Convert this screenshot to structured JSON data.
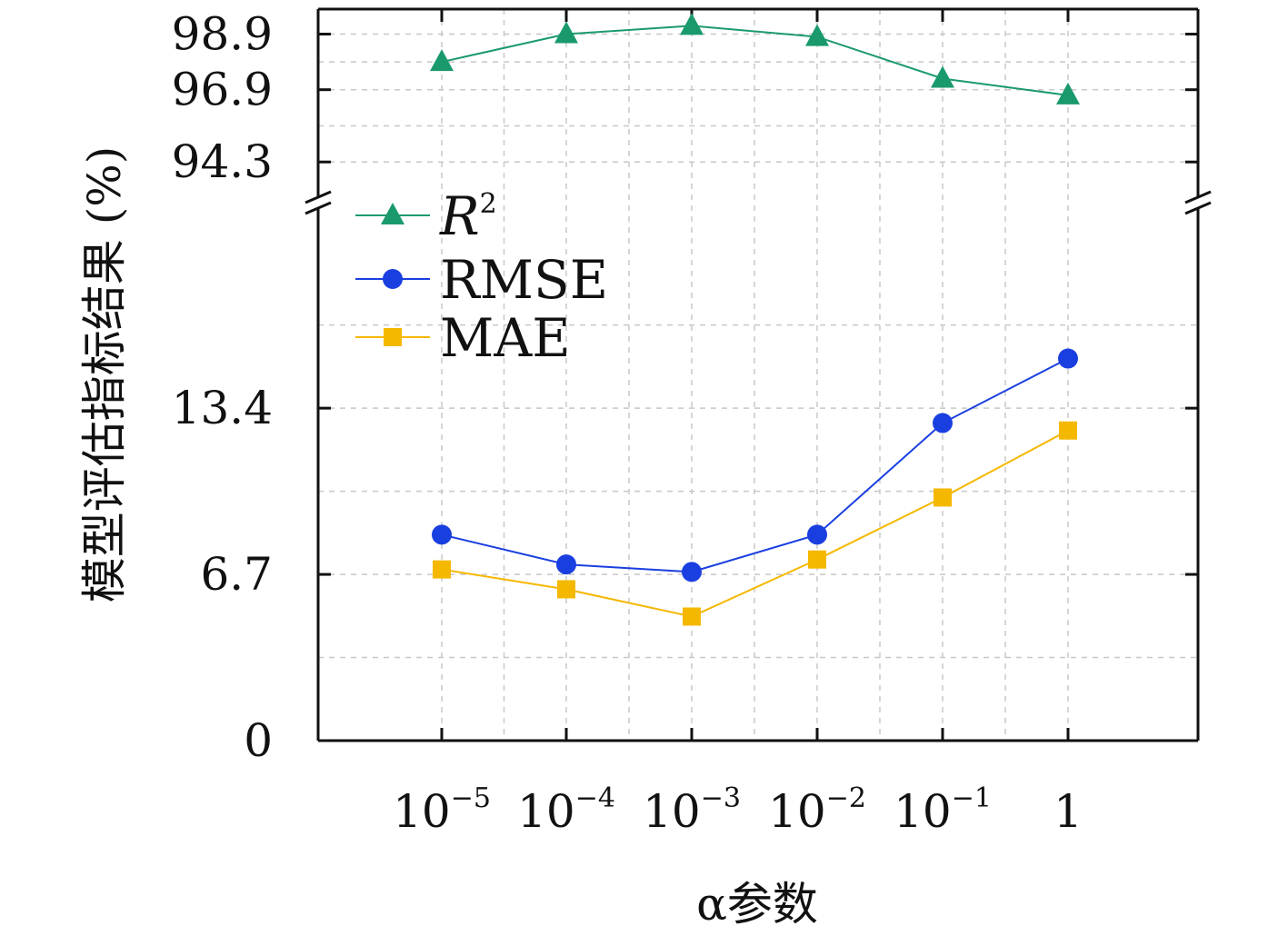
{
  "chart_data": {
    "type": "line",
    "xlabel": "α参数",
    "ylabel": "模型评估指标结果 (%)",
    "x_ticks": [
      {
        "base": "10",
        "exp": "−5"
      },
      {
        "base": "10",
        "exp": "−4"
      },
      {
        "base": "10",
        "exp": "−3"
      },
      {
        "base": "10",
        "exp": "−2"
      },
      {
        "base": "10",
        "exp": "−1"
      },
      {
        "base": "1",
        "exp": ""
      }
    ],
    "x": [
      1e-05,
      0.0001,
      0.001,
      0.01,
      0.1,
      1
    ],
    "y_axis_break": true,
    "upper_panel": {
      "ylim": [
        93.0,
        99.8
      ],
      "yticks": [
        94.3,
        96.9,
        98.9
      ],
      "ytick_labels": [
        "94.3",
        "96.9",
        "98.9"
      ]
    },
    "lower_panel": {
      "ylim": [
        0,
        21.5
      ],
      "yticks": [
        0,
        6.7,
        13.4
      ],
      "ytick_labels": [
        "0",
        "6.7",
        "13.4"
      ]
    },
    "legend_position": "upper-left",
    "series": [
      {
        "name": "R",
        "name_sup": "2",
        "panel": "upper",
        "marker": "triangle",
        "color": "#1a9a6c",
        "values": [
          97.9,
          98.9,
          99.2,
          98.8,
          97.3,
          96.7
        ]
      },
      {
        "name": "RMSE",
        "name_sup": "",
        "panel": "lower",
        "marker": "circle",
        "color": "#1a3fe0",
        "values": [
          8.3,
          7.1,
          6.8,
          8.3,
          12.8,
          15.4
        ]
      },
      {
        "name": "MAE",
        "name_sup": "",
        "panel": "lower",
        "marker": "square",
        "color": "#f5b800",
        "values": [
          6.9,
          6.1,
          5.0,
          7.3,
          9.8,
          12.5
        ]
      }
    ]
  }
}
